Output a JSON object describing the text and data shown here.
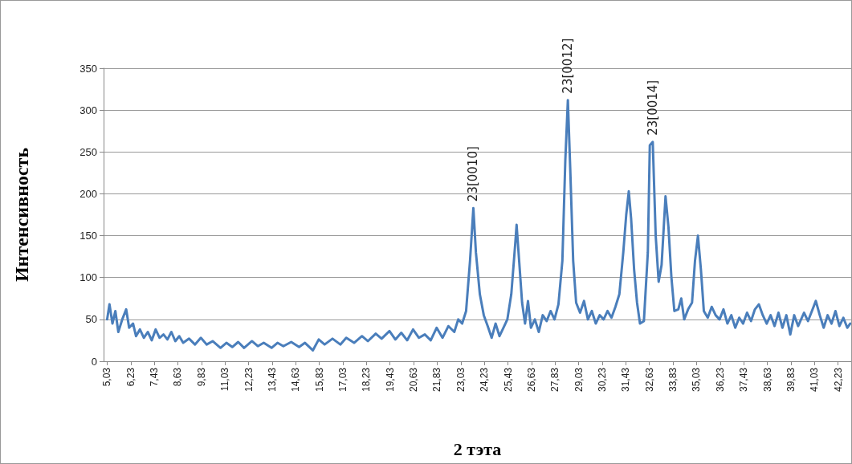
{
  "chart_data": {
    "type": "line",
    "xlabel": "2 тэта",
    "ylabel": "Интенсивность",
    "color": "#4a7ebb",
    "line_style": "solid",
    "marker": "none",
    "grid": "y",
    "xlim": [
      4.85,
      42.9
    ],
    "ylim": [
      0,
      350
    ],
    "yticks": [
      0,
      50,
      100,
      150,
      200,
      250,
      300,
      350
    ],
    "xticks": [
      {
        "value": 5.03,
        "label": "5,03"
      },
      {
        "value": 6.23,
        "label": "6,23"
      },
      {
        "value": 7.43,
        "label": "7,43"
      },
      {
        "value": 8.63,
        "label": "8,63"
      },
      {
        "value": 9.83,
        "label": "9,83"
      },
      {
        "value": 11.03,
        "label": "11,03"
      },
      {
        "value": 12.23,
        "label": "12,23"
      },
      {
        "value": 13.43,
        "label": "13,43"
      },
      {
        "value": 14.63,
        "label": "14,63"
      },
      {
        "value": 15.83,
        "label": "15,83"
      },
      {
        "value": 17.03,
        "label": "17,03"
      },
      {
        "value": 18.23,
        "label": "18,23"
      },
      {
        "value": 19.43,
        "label": "19,43"
      },
      {
        "value": 20.63,
        "label": "20,63"
      },
      {
        "value": 21.83,
        "label": "21,83"
      },
      {
        "value": 23.03,
        "label": "23,03"
      },
      {
        "value": 24.23,
        "label": "24,23"
      },
      {
        "value": 25.43,
        "label": "25,43"
      },
      {
        "value": 26.63,
        "label": "26,63"
      },
      {
        "value": 27.83,
        "label": "27,83"
      },
      {
        "value": 29.03,
        "label": "29,03"
      },
      {
        "value": 30.23,
        "label": "30,23"
      },
      {
        "value": 31.43,
        "label": "31,43"
      },
      {
        "value": 32.63,
        "label": "32,63"
      },
      {
        "value": 33.83,
        "label": "33,83"
      },
      {
        "value": 35.03,
        "label": "35,03"
      },
      {
        "value": 36.23,
        "label": "36,23"
      },
      {
        "value": 37.43,
        "label": "37,43"
      },
      {
        "value": 38.63,
        "label": "38,63"
      },
      {
        "value": 39.83,
        "label": "39,83"
      },
      {
        "value": 41.03,
        "label": "41,03"
      },
      {
        "value": 42.23,
        "label": "42,23"
      }
    ],
    "x": [
      5.03,
      5.15,
      5.3,
      5.45,
      5.6,
      5.8,
      6.0,
      6.15,
      6.35,
      6.5,
      6.7,
      6.9,
      7.1,
      7.3,
      7.5,
      7.7,
      7.9,
      8.1,
      8.3,
      8.5,
      8.7,
      8.9,
      9.2,
      9.5,
      9.8,
      10.1,
      10.4,
      10.8,
      11.1,
      11.4,
      11.7,
      12.0,
      12.4,
      12.7,
      13.0,
      13.4,
      13.7,
      14.0,
      14.4,
      14.8,
      15.1,
      15.5,
      15.8,
      16.1,
      16.5,
      16.9,
      17.2,
      17.6,
      18.0,
      18.3,
      18.7,
      19.0,
      19.4,
      19.7,
      20.0,
      20.3,
      20.6,
      20.9,
      21.2,
      21.5,
      21.8,
      22.1,
      22.4,
      22.7,
      22.9,
      23.1,
      23.3,
      23.5,
      23.67,
      23.8,
      24.0,
      24.2,
      24.4,
      24.6,
      24.8,
      25.0,
      25.2,
      25.4,
      25.6,
      25.8,
      25.87,
      26.0,
      26.15,
      26.3,
      26.45,
      26.6,
      26.8,
      27.0,
      27.2,
      27.4,
      27.6,
      27.8,
      28.0,
      28.2,
      28.35,
      28.48,
      28.6,
      28.75,
      28.9,
      29.1,
      29.3,
      29.5,
      29.7,
      29.9,
      30.1,
      30.3,
      30.5,
      30.7,
      30.9,
      31.1,
      31.3,
      31.45,
      31.58,
      31.7,
      31.85,
      32.0,
      32.15,
      32.35,
      32.55,
      32.65,
      32.8,
      32.95,
      33.1,
      33.25,
      33.45,
      33.6,
      33.75,
      33.9,
      34.1,
      34.25,
      34.4,
      34.6,
      34.8,
      34.95,
      35.1,
      35.25,
      35.4,
      35.6,
      35.8,
      36.0,
      36.2,
      36.4,
      36.6,
      36.8,
      37.0,
      37.2,
      37.4,
      37.6,
      37.8,
      38.0,
      38.2,
      38.4,
      38.6,
      38.8,
      39.0,
      39.2,
      39.4,
      39.6,
      39.8,
      40.0,
      40.2,
      40.5,
      40.7,
      40.9,
      41.1,
      41.3,
      41.5,
      41.7,
      41.9,
      42.1,
      42.3,
      42.5,
      42.7,
      42.85
    ],
    "values": [
      50,
      68,
      45,
      60,
      35,
      50,
      62,
      40,
      45,
      30,
      38,
      28,
      35,
      25,
      38,
      28,
      32,
      26,
      35,
      24,
      30,
      22,
      27,
      20,
      28,
      20,
      24,
      16,
      22,
      17,
      23,
      16,
      24,
      18,
      22,
      16,
      22,
      18,
      23,
      17,
      22,
      13,
      26,
      20,
      27,
      20,
      28,
      22,
      30,
      24,
      33,
      27,
      36,
      26,
      34,
      25,
      38,
      28,
      32,
      25,
      40,
      28,
      42,
      35,
      50,
      45,
      60,
      120,
      183,
      130,
      80,
      55,
      42,
      28,
      45,
      30,
      40,
      50,
      80,
      140,
      163,
      120,
      70,
      45,
      72,
      40,
      50,
      35,
      55,
      48,
      60,
      50,
      68,
      120,
      240,
      312,
      230,
      120,
      70,
      58,
      72,
      50,
      60,
      45,
      55,
      50,
      60,
      52,
      65,
      80,
      130,
      175,
      203,
      170,
      110,
      70,
      45,
      48,
      130,
      258,
      262,
      150,
      95,
      115,
      197,
      160,
      100,
      60,
      62,
      75,
      50,
      62,
      70,
      120,
      150,
      110,
      60,
      52,
      65,
      55,
      50,
      62,
      45,
      55,
      40,
      52,
      45,
      58,
      48,
      62,
      68,
      55,
      45,
      55,
      42,
      58,
      40,
      55,
      32,
      55,
      42,
      58,
      48,
      60,
      72,
      55,
      40,
      55,
      45,
      60,
      42,
      52,
      40,
      45
    ],
    "annotations": [
      {
        "text": "23[0010]",
        "x": 23.67,
        "y": 183
      },
      {
        "text": "23[0012]",
        "x": 28.48,
        "y": 312
      },
      {
        "text": "23[0014]",
        "x": 32.8,
        "y": 262
      }
    ]
  }
}
